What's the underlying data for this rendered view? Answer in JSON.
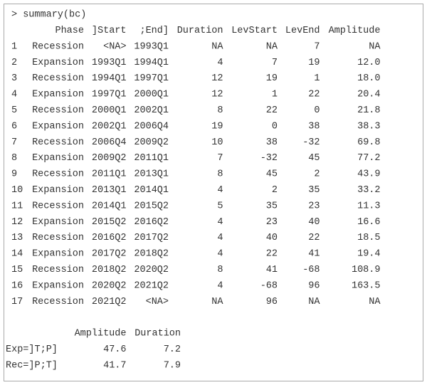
{
  "command": "> summary(bc)",
  "table": {
    "columns": [
      "Phase",
      "]Start",
      ";End]",
      "Duration",
      "LevStart",
      "LevEnd",
      "Amplitude"
    ],
    "rows": [
      [
        "1",
        "Recession",
        "<NA>",
        "1993Q1",
        "NA",
        "NA",
        "7",
        "NA"
      ],
      [
        "2",
        "Expansion",
        "1993Q1",
        "1994Q1",
        "4",
        "7",
        "19",
        "12.0"
      ],
      [
        "3",
        "Recession",
        "1994Q1",
        "1997Q1",
        "12",
        "19",
        "1",
        "18.0"
      ],
      [
        "4",
        "Expansion",
        "1997Q1",
        "2000Q1",
        "12",
        "1",
        "22",
        "20.4"
      ],
      [
        "5",
        "Recession",
        "2000Q1",
        "2002Q1",
        "8",
        "22",
        "0",
        "21.8"
      ],
      [
        "6",
        "Expansion",
        "2002Q1",
        "2006Q4",
        "19",
        "0",
        "38",
        "38.3"
      ],
      [
        "7",
        "Recession",
        "2006Q4",
        "2009Q2",
        "10",
        "38",
        "-32",
        "69.8"
      ],
      [
        "8",
        "Expansion",
        "2009Q2",
        "2011Q1",
        "7",
        "-32",
        "45",
        "77.2"
      ],
      [
        "9",
        "Recession",
        "2011Q1",
        "2013Q1",
        "8",
        "45",
        "2",
        "43.9"
      ],
      [
        "10",
        "Expansion",
        "2013Q1",
        "2014Q1",
        "4",
        "2",
        "35",
        "33.2"
      ],
      [
        "11",
        "Recession",
        "2014Q1",
        "2015Q2",
        "5",
        "35",
        "23",
        "11.3"
      ],
      [
        "12",
        "Expansion",
        "2015Q2",
        "2016Q2",
        "4",
        "23",
        "40",
        "16.6"
      ],
      [
        "13",
        "Recession",
        "2016Q2",
        "2017Q2",
        "4",
        "40",
        "22",
        "18.5"
      ],
      [
        "14",
        "Expansion",
        "2017Q2",
        "2018Q2",
        "4",
        "22",
        "41",
        "19.4"
      ],
      [
        "15",
        "Recession",
        "2018Q2",
        "2020Q2",
        "8",
        "41",
        "-68",
        "108.9"
      ],
      [
        "16",
        "Expansion",
        "2020Q2",
        "2021Q2",
        "4",
        "-68",
        "96",
        "163.5"
      ],
      [
        "17",
        "Recession",
        "2021Q2",
        "<NA>",
        "NA",
        "96",
        "NA",
        "NA"
      ]
    ]
  },
  "summary": {
    "columns": [
      "Amplitude",
      "Duration"
    ],
    "rows": [
      [
        "Exp=]T;P]",
        "47.6",
        "7.2"
      ],
      [
        "Rec=]P;T]",
        "41.7",
        "7.9"
      ]
    ]
  }
}
